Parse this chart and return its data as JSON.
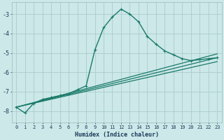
{
  "xlabel": "Humidex (Indice chaleur)",
  "background_color": "#cce8e8",
  "grid_color": "#aacccc",
  "line_color": "#1a7a6a",
  "xlim": [
    -0.5,
    23.5
  ],
  "ylim": [
    -8.6,
    -2.4
  ],
  "yticks": [
    -8,
    -7,
    -6,
    -5,
    -4,
    -3
  ],
  "xticks": [
    0,
    1,
    2,
    3,
    4,
    5,
    6,
    7,
    8,
    9,
    10,
    11,
    12,
    13,
    14,
    15,
    16,
    17,
    18,
    19,
    20,
    21,
    22,
    23
  ],
  "series": [
    {
      "x": [
        0,
        1,
        2,
        3,
        4,
        5,
        6,
        7,
        8,
        9,
        10,
        11,
        12,
        13,
        14,
        15,
        16,
        17,
        18,
        19,
        20,
        21,
        22,
        23
      ],
      "y": [
        -7.8,
        -8.1,
        -7.6,
        -7.4,
        -7.3,
        -7.2,
        -7.1,
        -6.9,
        -6.7,
        -4.85,
        -3.7,
        -3.15,
        -2.75,
        -3.0,
        -3.4,
        -4.15,
        -4.55,
        -4.9,
        -5.1,
        -5.3,
        -5.4,
        -5.35,
        -5.3,
        -5.25
      ],
      "marker": "o",
      "markersize": 2.5,
      "linewidth": 1.0,
      "with_marker": true
    },
    {
      "x": [
        0,
        23
      ],
      "y": [
        -7.8,
        -5.05
      ],
      "marker": null,
      "linewidth": 0.9,
      "with_marker": false
    },
    {
      "x": [
        0,
        23
      ],
      "y": [
        -7.8,
        -5.25
      ],
      "marker": null,
      "linewidth": 0.9,
      "with_marker": false
    },
    {
      "x": [
        0,
        23
      ],
      "y": [
        -7.8,
        -5.45
      ],
      "marker": null,
      "linewidth": 0.9,
      "with_marker": false
    }
  ]
}
